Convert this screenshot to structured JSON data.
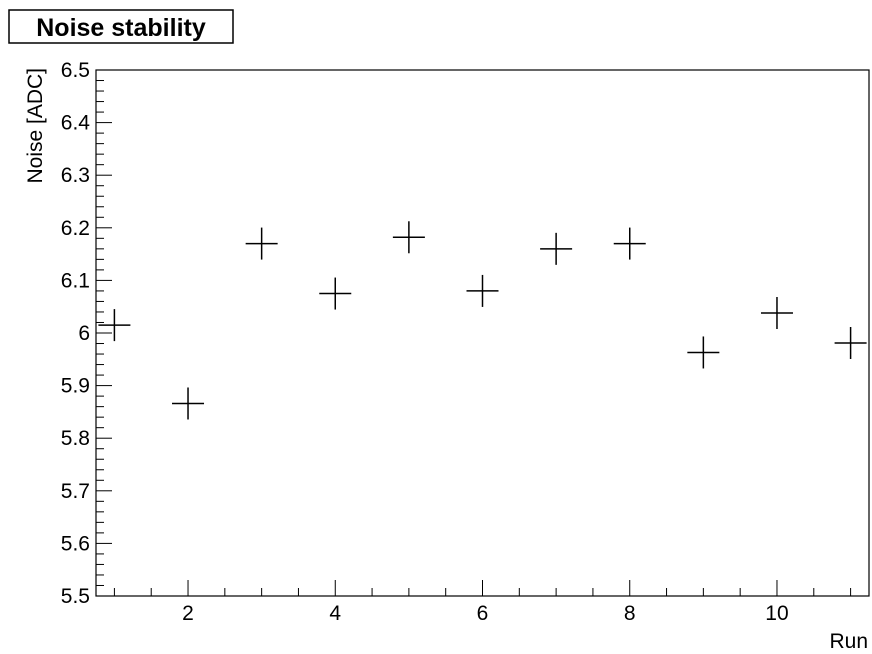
{
  "chart_data": {
    "type": "scatter",
    "title": "Noise stability",
    "xlabel": "Run",
    "ylabel": "Noise [ADC]",
    "xlim": [
      0.75,
      11.25
    ],
    "ylim": [
      5.5,
      6.5
    ],
    "x_ticks": [
      2,
      4,
      6,
      8,
      10
    ],
    "y_ticks": [
      5.5,
      5.6,
      5.7,
      5.8,
      5.9,
      6,
      6.1,
      6.2,
      6.3,
      6.4,
      6.5
    ],
    "x_tick_labels": [
      "2",
      "4",
      "6",
      "8",
      "10"
    ],
    "y_tick_labels": [
      "5.5",
      "5.6",
      "5.7",
      "5.8",
      "5.9",
      "6",
      "6.1",
      "6.2",
      "6.3",
      "6.4",
      "6.5"
    ],
    "grid": false,
    "marker": "cross",
    "marker_color": "#000000",
    "series": [
      {
        "x": [
          1,
          2,
          3,
          4,
          5,
          6,
          7,
          8,
          9,
          10,
          11
        ],
        "y": [
          6.015,
          5.866,
          6.17,
          6.075,
          6.182,
          6.08,
          6.16,
          6.17,
          5.963,
          6.038,
          5.981
        ]
      }
    ]
  }
}
